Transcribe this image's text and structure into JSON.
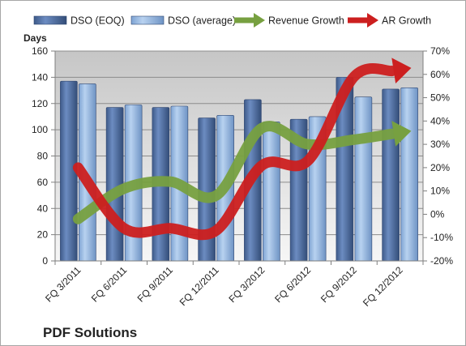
{
  "chart_data": {
    "type": "bar",
    "title": "",
    "caption": "PDF Solutions",
    "categories": [
      "FQ 3/2011",
      "FQ 6/2011",
      "FQ 9/2011",
      "FQ 12/2011",
      "FQ 3/2012",
      "FQ 6/2012",
      "FQ 9/2012",
      "FQ 12/2012"
    ],
    "series": [
      {
        "name": "DSO (EOQ)",
        "type": "bar",
        "axis": "left",
        "color": "#4f6fa3",
        "values": [
          137,
          117,
          117,
          109,
          123,
          108,
          140,
          131
        ]
      },
      {
        "name": "DSO (average)",
        "type": "bar",
        "axis": "left",
        "color": "#8fb3e0",
        "values": [
          135,
          119,
          118,
          111,
          106,
          110,
          125,
          132
        ]
      },
      {
        "name": "Revenue Growth",
        "type": "line",
        "axis": "right",
        "color": "#77a040",
        "unit": "%",
        "values": [
          -2,
          11,
          14,
          8,
          37,
          30,
          32,
          35
        ]
      },
      {
        "name": "AR Growth",
        "type": "line",
        "axis": "right",
        "color": "#cc1f1f",
        "unit": "%",
        "values": [
          20,
          -6,
          -6,
          -7,
          21,
          23,
          59,
          62
        ]
      }
    ],
    "ylabel": "Days",
    "ylim": [
      0,
      160
    ],
    "yticks": [
      "0",
      "20",
      "40",
      "60",
      "80",
      "100",
      "120",
      "140",
      "160"
    ],
    "y2lim": [
      -20,
      70
    ],
    "y2ticks": [
      "-20%",
      "-10%",
      "0%",
      "10%",
      "20%",
      "30%",
      "40%",
      "50%",
      "60%",
      "70%"
    ],
    "grid": true,
    "legend": "top"
  }
}
